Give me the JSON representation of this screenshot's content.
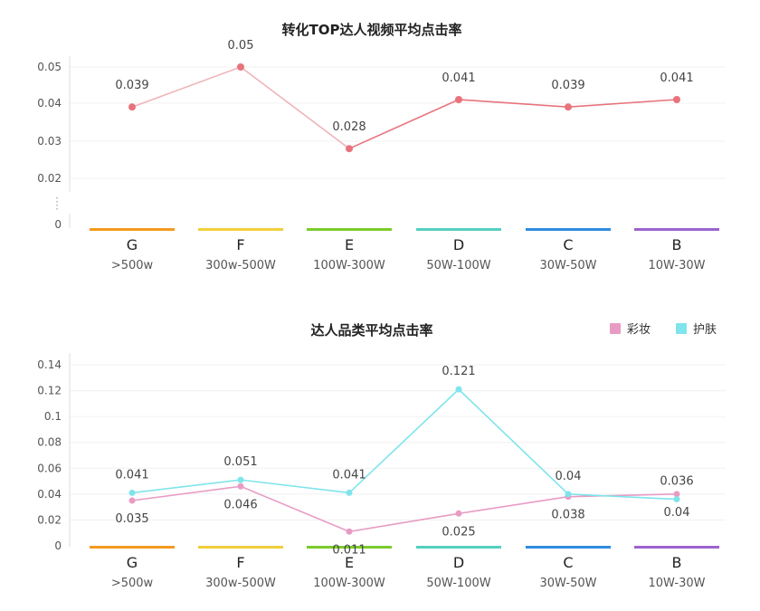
{
  "chart_data": [
    {
      "type": "line",
      "title": "转化TOP达人视频平均点击率",
      "categories": [
        "G",
        "F",
        "E",
        "D",
        "C",
        "B"
      ],
      "category_sublabels": [
        ">500w",
        "300w-500W",
        "100W-300W",
        "50W-100W",
        "30W-50W",
        "10W-30W"
      ],
      "series": [
        {
          "values": [
            0.039,
            0.05,
            0.028,
            0.041,
            0.039,
            0.041
          ],
          "color": "#e8737c"
        }
      ],
      "data_labels": [
        "0.039",
        "0.05",
        "0.028",
        "0.041",
        "0.039",
        "0.041"
      ],
      "yticks": [
        "0",
        "0.02",
        "0.03",
        "0.04",
        "0.05"
      ],
      "ylim": [
        0,
        0.05
      ],
      "y_axis_break": true,
      "grid": true,
      "category_bar_colors": [
        "#f39a1e",
        "#f2cf3c",
        "#7ccb2c",
        "#55cfc0",
        "#2f8de0",
        "#9b63cf"
      ]
    },
    {
      "type": "line",
      "title": "达人品类平均点击率",
      "categories": [
        "G",
        "F",
        "E",
        "D",
        "C",
        "B"
      ],
      "category_sublabels": [
        ">500w",
        "300w-500W",
        "100W-300W",
        "50W-100W",
        "30W-50W",
        "10W-30W"
      ],
      "series": [
        {
          "name": "彩妆",
          "values": [
            0.035,
            0.046,
            0.011,
            0.025,
            0.038,
            0.04
          ],
          "color": "#e89cc4",
          "data_labels": [
            "0.035",
            "0.046",
            "0.011",
            "0.025",
            "0.038",
            "0.04"
          ]
        },
        {
          "name": "护肤",
          "values": [
            0.041,
            0.051,
            0.041,
            0.121,
            0.04,
            0.036
          ],
          "color": "#7fe4ec",
          "data_labels": [
            "0.041",
            "0.051",
            "0.041",
            "0.121",
            "0.04",
            "0.036"
          ]
        }
      ],
      "yticks": [
        "0",
        "0.02",
        "0.04",
        "0.06",
        "0.08",
        "0.1",
        "0.12",
        "0.14"
      ],
      "ylim": [
        0,
        0.14
      ],
      "grid": true,
      "legend": "top-right",
      "category_bar_colors": [
        "#f39a1e",
        "#f2cf3c",
        "#7ccb2c",
        "#55cfc0",
        "#2f8de0",
        "#9b63cf"
      ]
    }
  ]
}
